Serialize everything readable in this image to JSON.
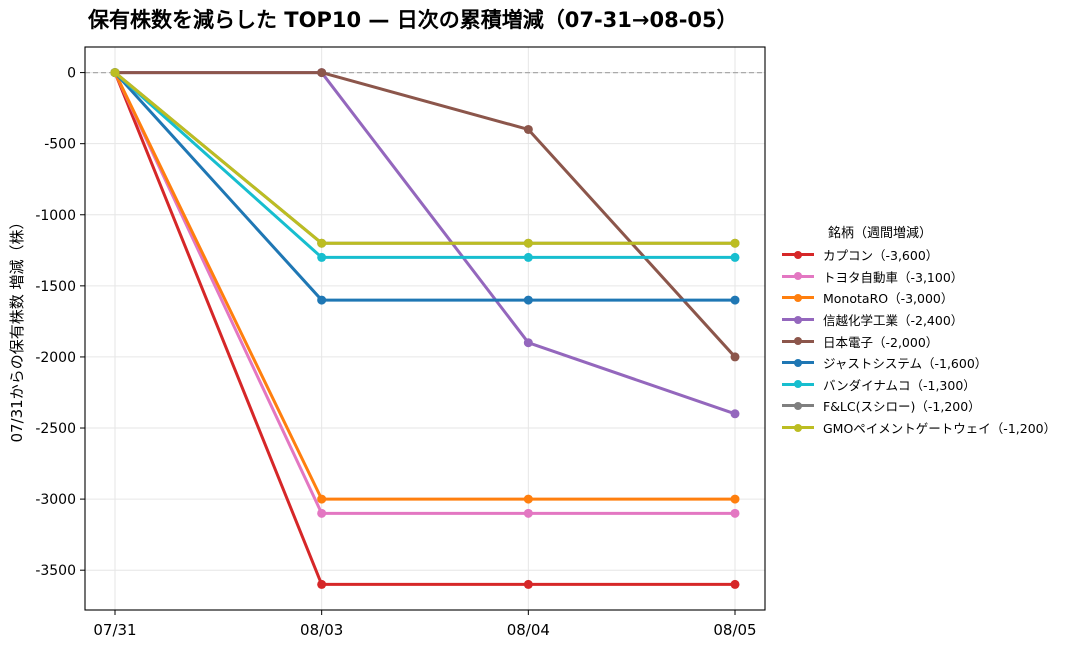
{
  "chart_data": {
    "type": "line",
    "title": "保有株数を減らした TOP10 — 日次の累積増減（07-31→08-05）",
    "xlabel": "",
    "ylabel": "07/31からの保有株数 増減（株）",
    "categories": [
      "07/31",
      "08/03",
      "08/04",
      "08/05"
    ],
    "ylim": [
      -3780,
      180
    ],
    "yticks": [
      0,
      -500,
      -1000,
      -1500,
      -2000,
      -2500,
      -3000,
      -3500
    ],
    "grid": true,
    "zero_line": true,
    "legend_title": "銘柄（週間増減）",
    "legend_position": "right",
    "series": [
      {
        "name": "カプコン（-3,600）",
        "color": "#d62728",
        "values": [
          0,
          -3600,
          -3600,
          -3600
        ]
      },
      {
        "name": "トヨタ自動車（-3,100）",
        "color": "#e377c2",
        "values": [
          0,
          -3100,
          -3100,
          -3100
        ]
      },
      {
        "name": "MonotaRO（-3,000）",
        "color": "#ff7f0e",
        "values": [
          0,
          -3000,
          -3000,
          -3000
        ]
      },
      {
        "name": "信越化学工業（-2,400）",
        "color": "#9467bd",
        "values": [
          0,
          0,
          -1900,
          -2400
        ]
      },
      {
        "name": "日本電子（-2,000）",
        "color": "#8c564b",
        "values": [
          0,
          0,
          -400,
          -2000
        ]
      },
      {
        "name": "ジャストシステム（-1,600）",
        "color": "#1f77b4",
        "values": [
          0,
          -1600,
          -1600,
          -1600
        ]
      },
      {
        "name": "バンダイナムコ（-1,300）",
        "color": "#17becf",
        "values": [
          0,
          -1300,
          -1300,
          -1300
        ]
      },
      {
        "name": "F&LC(スシロー)（-1,200）",
        "color": "#7f7f7f",
        "values": [
          0,
          -1200,
          -1200,
          -1200
        ]
      },
      {
        "name": "GMOペイメントゲートウェイ（-1,200）",
        "color": "#bcbd22",
        "values": [
          0,
          -1200,
          -1200,
          -1200
        ]
      }
    ]
  }
}
